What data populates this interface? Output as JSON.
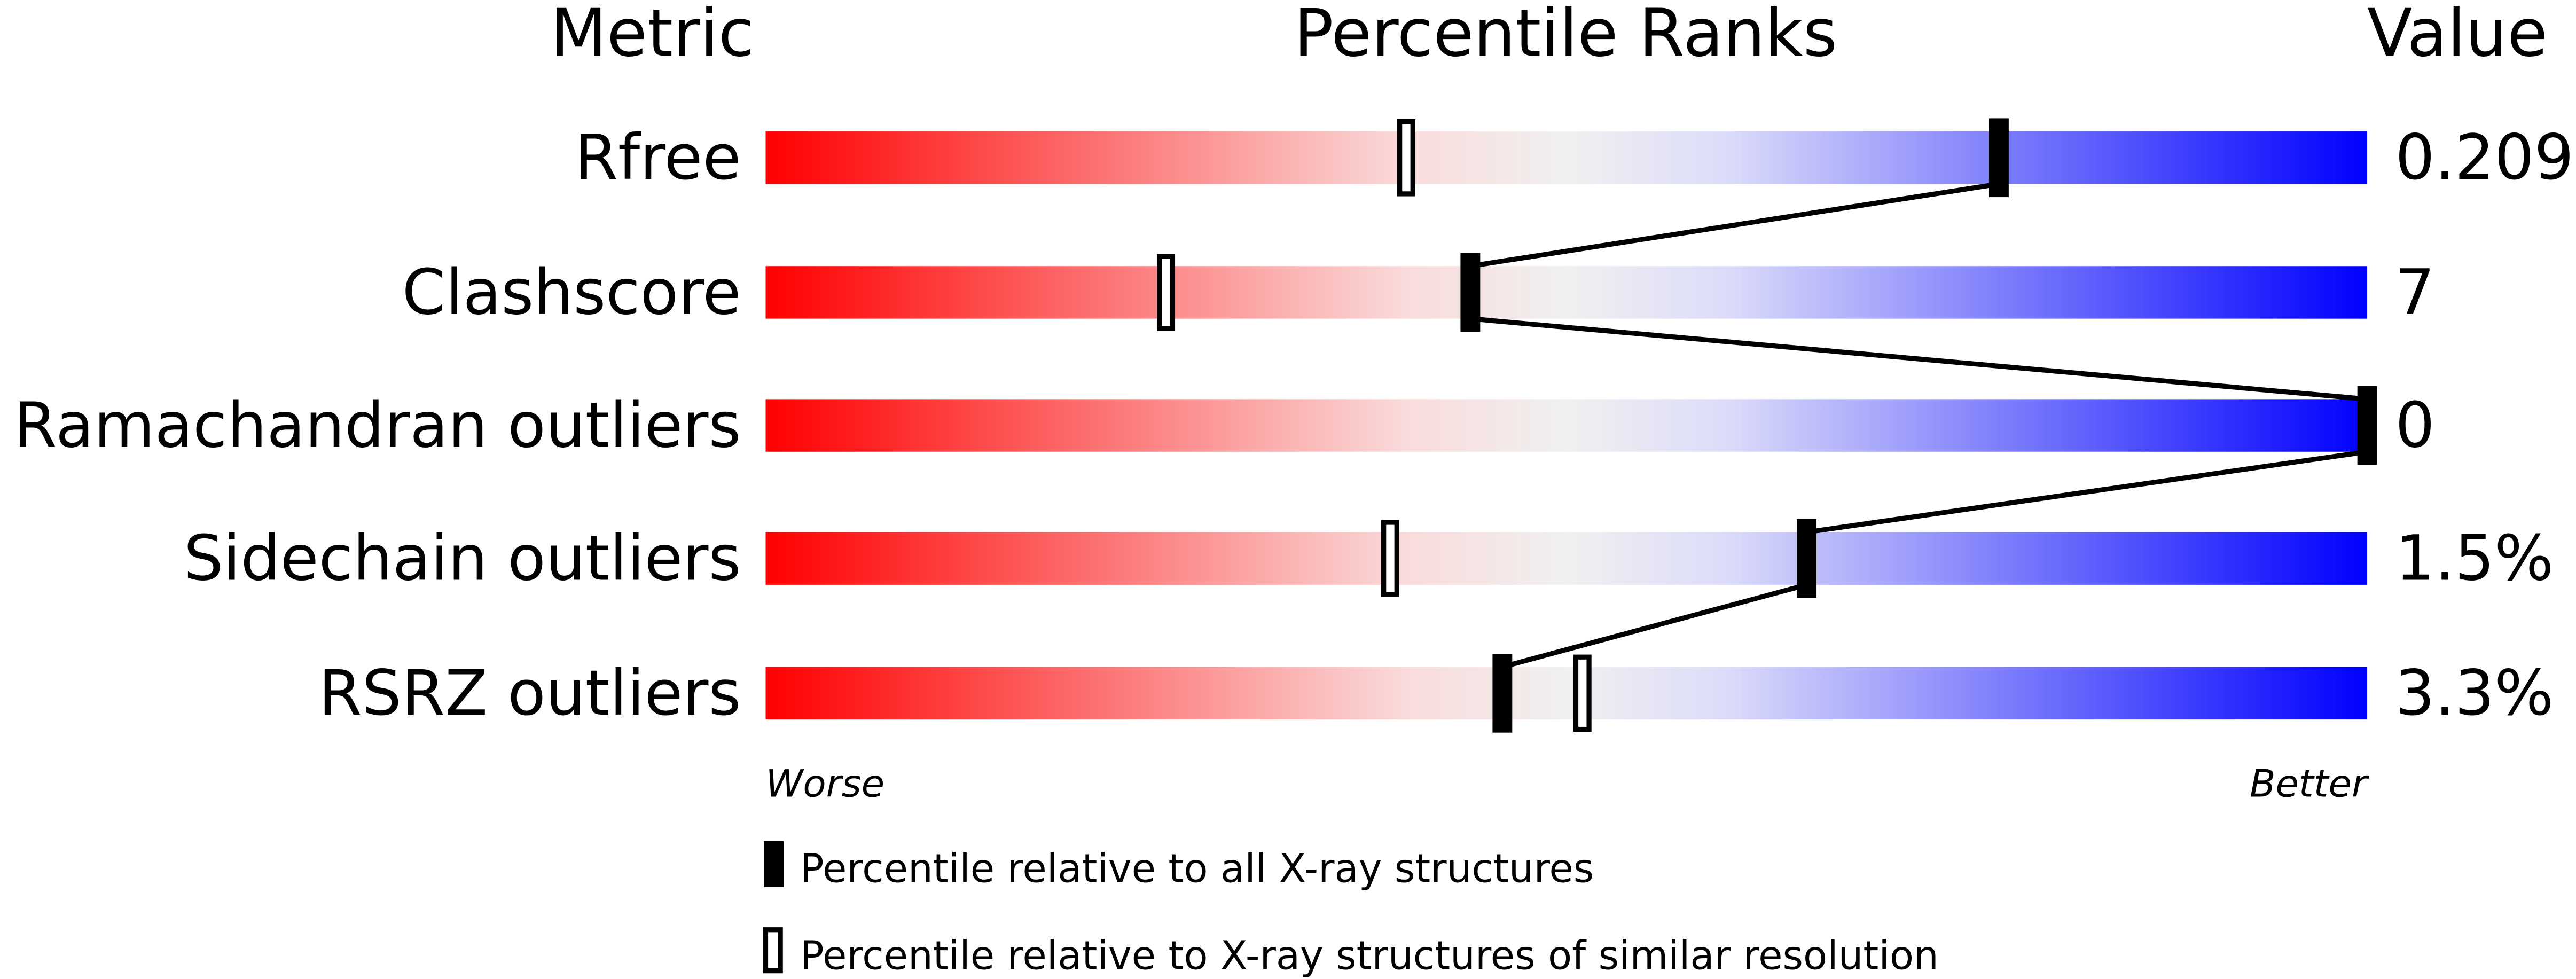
{
  "chart_data": {
    "type": "percentile-bar",
    "headers": {
      "metric": "Metric",
      "ranks": "Percentile Ranks",
      "value": "Value"
    },
    "xlim": [
      0,
      100
    ],
    "axis_labels": {
      "left": "Worse",
      "right": "Better"
    },
    "gradient_colors": [
      "#ff0000",
      "#fadbdb",
      "#f0f0f0",
      "#dcdcfa",
      "#0000ff"
    ],
    "metrics": [
      {
        "name": "Rfree",
        "value": "0.209",
        "percentile_all": 77,
        "percentile_similar": 40
      },
      {
        "name": "Clashscore",
        "value": "7",
        "percentile_all": 44,
        "percentile_similar": 25
      },
      {
        "name": "Ramachandran outliers",
        "value": "0",
        "percentile_all": 100,
        "percentile_similar": null
      },
      {
        "name": "Sidechain outliers",
        "value": "1.5%",
        "percentile_all": 65,
        "percentile_similar": 39
      },
      {
        "name": "RSRZ outliers",
        "value": "3.3%",
        "percentile_all": 46,
        "percentile_similar": 51
      }
    ],
    "legend": [
      {
        "marker": "filled",
        "label": "Percentile relative to all X-ray structures"
      },
      {
        "marker": "hollow",
        "label": "Percentile relative to X-ray structures of similar resolution"
      }
    ]
  }
}
